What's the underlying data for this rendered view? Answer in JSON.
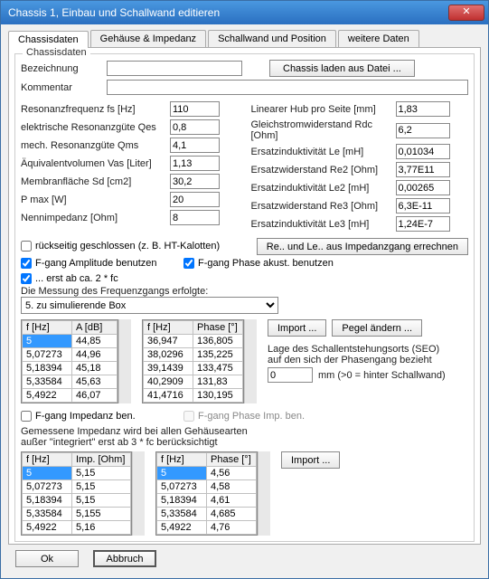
{
  "window": {
    "title": "Chassis 1, Einbau und Schallwand editieren"
  },
  "tabs": [
    "Chassisdaten",
    "Gehäuse & Impedanz",
    "Schallwand und Position",
    "weitere Daten"
  ],
  "group": {
    "legend": "Chassisdaten",
    "bezeichnung_label": "Bezeichnung",
    "bezeichnung_value": "",
    "load_btn": "Chassis laden aus Datei ...",
    "kommentar_label": "Kommentar",
    "kommentar_value": ""
  },
  "params_left": [
    {
      "label": "Resonanzfrequenz fs [Hz]",
      "value": "110"
    },
    {
      "label": "elektrische Resonanzgüte Qes",
      "value": "0,8"
    },
    {
      "label": "mech. Resonanzgüte Qms",
      "value": "4,1"
    },
    {
      "label": "Äquivalentvolumen Vas [Liter]",
      "value": "1,13"
    },
    {
      "label": "Membranfläche Sd [cm2]",
      "value": "30,2"
    },
    {
      "label": "P max  [W]",
      "value": "20"
    },
    {
      "label": "Nennimpedanz  [Ohm]",
      "value": "8"
    }
  ],
  "params_right": [
    {
      "label": "Linearer Hub pro Seite [mm]",
      "value": "1,83"
    },
    {
      "label": "Gleichstromwiderstand Rdc [Ohm]",
      "value": "6,2"
    },
    {
      "label": "Ersatzinduktivität Le [mH]",
      "value": "0,01034"
    },
    {
      "label": "Ersatzwiderstand Re2 [Ohm]",
      "value": "3,77E11"
    },
    {
      "label": "Ersatzinduktivität Le2 [mH]",
      "value": "0,00265"
    },
    {
      "label": "Ersatzwiderstand Re3 [Ohm]",
      "value": "6,3E-11"
    },
    {
      "label": "Ersatzinduktivität Le3 [mH]",
      "value": "1,24E-7"
    }
  ],
  "chk_rueck": "rückseitig geschlossen (z. B. HT-Kalotten)",
  "btn_calc": "Re.. und Le.. aus Impedanzgang errechnen",
  "chk_amp": "F-gang Amplitude benutzen",
  "chk_phase": "F-gang Phase akust. benutzen",
  "chk_ab": "... erst ab ca. 2 * fc",
  "lbl_messung": "Die Messung des Frequenzgangs erfolgte:",
  "select_val": "5. zu simulierende Box",
  "tbl1_headers": [
    "f [Hz]",
    "A [dB]"
  ],
  "tbl1_rows": [
    [
      "5",
      "44,85"
    ],
    [
      "5,07273",
      "44,96"
    ],
    [
      "5,18394",
      "45,18"
    ],
    [
      "5,33584",
      "45,63"
    ],
    [
      "5,4922",
      "46,07"
    ]
  ],
  "tbl2_headers": [
    "f [Hz]",
    "Phase [°]"
  ],
  "tbl2_rows": [
    [
      "36,947",
      "136,805"
    ],
    [
      "38,0296",
      "135,225"
    ],
    [
      "39,1439",
      "133,475"
    ],
    [
      "40,2909",
      "131,83"
    ],
    [
      "41,4716",
      "130,195"
    ]
  ],
  "btn_import": "Import ...",
  "btn_pegel": "Pegel ändern ...",
  "seo_line1": "Lage des Schallentstehungsorts (SEO)",
  "seo_line2": "auf den sich der Phasengang bezieht",
  "seo_val": "0",
  "seo_unit": "mm  (>0 = hinter Schallwand)",
  "chk_imp": "F-gang Impedanz ben.",
  "chk_imp_phase": "F-gang Phase Imp. ben.",
  "lbl_gemessene1": "Gemessene Impedanz wird bei allen Gehäusearten",
  "lbl_gemessene2": "außer \"integriert\" erst ab 3 * fc berücksichtigt",
  "tbl3_headers": [
    "f [Hz]",
    "Imp. [Ohm]"
  ],
  "tbl3_rows": [
    [
      "5",
      "5,15"
    ],
    [
      "5,07273",
      "5,15"
    ],
    [
      "5,18394",
      "5,15"
    ],
    [
      "5,33584",
      "5,155"
    ],
    [
      "5,4922",
      "5,16"
    ]
  ],
  "tbl4_headers": [
    "f [Hz]",
    "Phase [°]"
  ],
  "tbl4_rows": [
    [
      "5",
      "4,56"
    ],
    [
      "5,07273",
      "4,58"
    ],
    [
      "5,18394",
      "4,61"
    ],
    [
      "5,33584",
      "4,685"
    ],
    [
      "5,4922",
      "4,76"
    ]
  ],
  "footer": {
    "ok": "Ok",
    "cancel": "Abbruch"
  }
}
